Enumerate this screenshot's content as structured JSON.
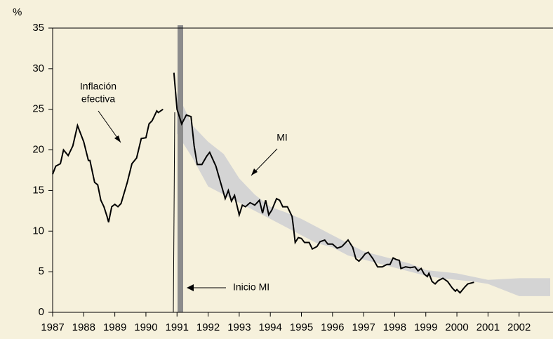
{
  "chart_data": {
    "type": "line",
    "ylabel": "%",
    "xlim": [
      1987,
      2003
    ],
    "xticks": [
      1987,
      1988,
      1989,
      1990,
      1991,
      1992,
      1993,
      1994,
      1995,
      1996,
      1997,
      1998,
      1999,
      2000,
      2001,
      2002
    ],
    "ylim": [
      0,
      35
    ],
    "yticks": [
      0,
      5,
      10,
      15,
      20,
      25,
      30,
      35
    ],
    "grid": false,
    "color": "#000000",
    "x": [
      1987.0,
      1987.1,
      1987.25,
      1987.35,
      1987.5,
      1987.65,
      1987.8,
      1988.0,
      1988.15,
      1988.2,
      1988.35,
      1988.45,
      1988.55,
      1988.65,
      1988.75,
      1988.8,
      1988.9,
      1989.0,
      1989.1,
      1989.2,
      1989.4,
      1989.55,
      1989.7,
      1989.85,
      1990.0,
      1990.1,
      1990.2,
      1990.35,
      1990.4,
      1990.55,
      1990.7,
      1990.9,
      1991.0,
      1991.15,
      1991.3,
      1991.45,
      1991.55,
      1991.65,
      1991.8,
      1991.95,
      1992.05,
      1992.25,
      1992.4,
      1992.55,
      1992.65,
      1992.75,
      1992.85,
      1993.0,
      1993.1,
      1993.2,
      1993.35,
      1993.5,
      1993.65,
      1993.75,
      1993.85,
      1993.95,
      1994.05,
      1994.2,
      1994.3,
      1994.4,
      1994.55,
      1994.7,
      1994.75,
      1994.8,
      1994.9,
      1995.0,
      1995.1,
      1995.25,
      1995.35,
      1995.5,
      1995.6,
      1995.75,
      1995.85,
      1996.0,
      1996.15,
      1996.3,
      1996.5,
      1996.65,
      1996.75,
      1996.85,
      1996.95,
      1997.05,
      1997.15,
      1997.3,
      1997.45,
      1997.6,
      1997.75,
      1997.85,
      1997.95,
      1998.05,
      1998.15,
      1998.2,
      1998.35,
      1998.5,
      1998.65,
      1998.75,
      1998.85,
      1998.95,
      1999.05,
      1999.1,
      1999.2,
      1999.3,
      1999.4,
      1999.55,
      1999.7,
      1999.85,
      1999.95,
      2000.0,
      2000.1,
      2000.25,
      2000.35,
      2000.55
    ],
    "values": [
      17,
      18,
      18.3,
      20,
      19.3,
      20.5,
      23,
      21,
      18.7,
      18.7,
      16,
      15.7,
      13.8,
      13,
      11.8,
      11.1,
      13,
      13.3,
      13,
      13.4,
      16,
      18.3,
      19,
      21.4,
      21.5,
      23.2,
      23.6,
      24.8,
      24.6,
      25,
      null,
      29.5,
      25,
      23.2,
      24.3,
      24.1,
      20.5,
      18.2,
      18.2,
      19.2,
      19.7,
      18,
      16,
      14,
      15,
      13.7,
      14.4,
      12,
      13.2,
      13,
      13.5,
      13.2,
      13.8,
      12.2,
      13.8,
      12,
      12.6,
      14,
      13.8,
      13,
      13,
      11.8,
      10.3,
      8.6,
      9.2,
      9.1,
      8.6,
      8.6,
      7.8,
      8.1,
      8.7,
      8.9,
      8.4,
      8.4,
      7.9,
      8.1,
      8.9,
      8,
      6.6,
      6.3,
      6.7,
      7.2,
      7.4,
      6.6,
      5.6,
      5.6,
      5.9,
      5.9,
      6.7,
      6.5,
      6.4,
      5.4,
      5.6,
      5.5,
      5.6,
      5.1,
      5.4,
      4.7,
      4.4,
      4.8,
      3.8,
      3.5,
      3.9,
      4.2,
      3.8,
      3.0,
      2.6,
      2.8,
      2.4,
      3.1,
      3.5,
      3.7
    ],
    "band": {
      "color": "#d4d4d4",
      "x": [
        1991.0,
        1991.5,
        1992.0,
        1992.5,
        1993.0,
        1993.5,
        1994.0,
        1994.5,
        1995.0,
        1995.5,
        1996.0,
        1996.5,
        1997.0,
        1997.5,
        1998.0,
        1998.5,
        1999.0,
        1999.5,
        2000.0,
        2000.5,
        2001.0,
        2002.0,
        2003.0
      ],
      "lower": [
        22,
        19,
        15.5,
        14.5,
        13.5,
        12.5,
        11.5,
        10.5,
        9.5,
        8.5,
        8,
        7,
        6.5,
        6,
        5.5,
        5,
        4.5,
        4.2,
        4,
        3.8,
        3.5,
        2,
        2
      ],
      "upper": [
        27,
        23,
        21,
        19.5,
        16.5,
        14.5,
        13,
        12.3,
        11.5,
        10.5,
        9.5,
        8.5,
        7.5,
        7,
        6.5,
        6,
        5.2,
        5,
        4.8,
        4.4,
        4,
        4.2,
        4.2
      ]
    },
    "annotations": [
      "Inflación",
      "efectiva",
      "MI",
      "Inicio MI"
    ]
  }
}
